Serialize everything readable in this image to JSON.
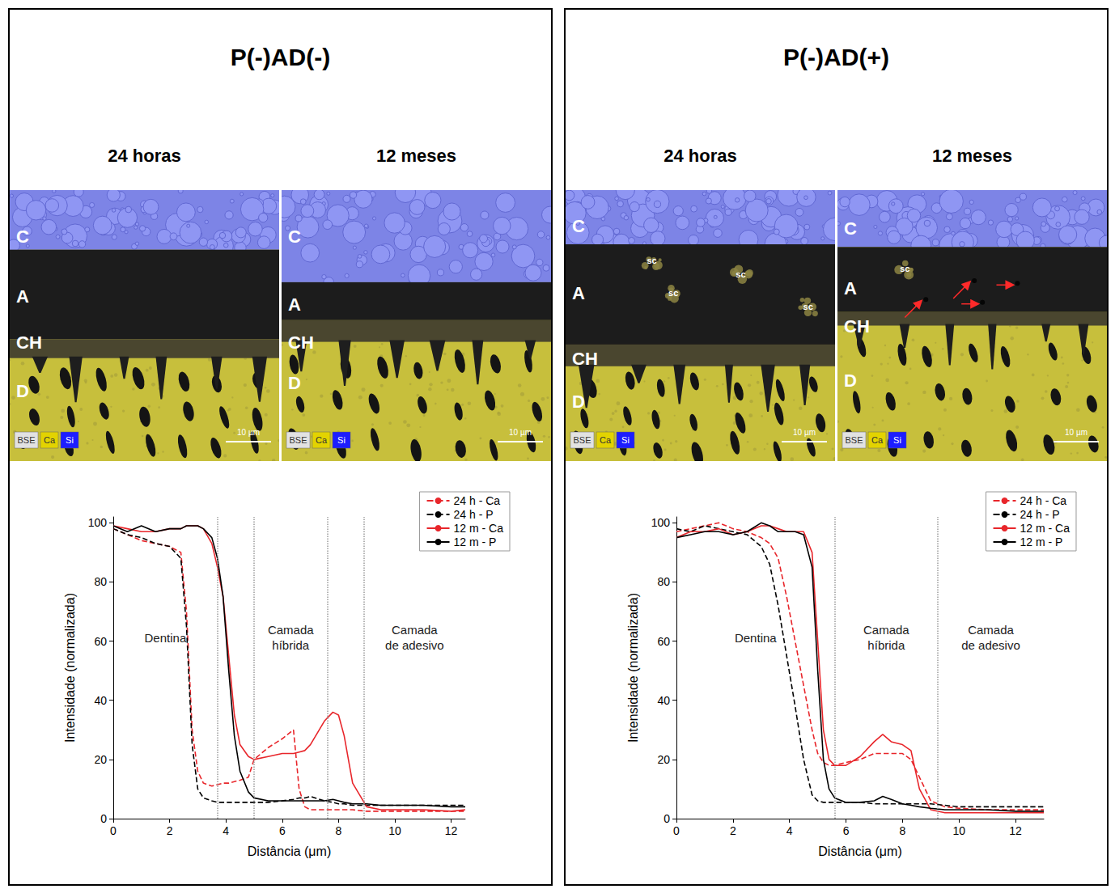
{
  "panels": [
    {
      "title": "P(-)AD(-)",
      "images": [
        {
          "time": "24 horas",
          "labels": [
            "C",
            "A",
            "CH",
            "D"
          ],
          "markers": [],
          "channels": [
            "BSE",
            "Ca",
            "Si"
          ],
          "scale_bar": "10 µm"
        },
        {
          "time": "12 meses",
          "labels": [
            "C",
            "A",
            "CH",
            "D"
          ],
          "markers": [],
          "channels": [
            "BSE",
            "Ca",
            "Si"
          ],
          "scale_bar": "10 µm"
        }
      ]
    },
    {
      "title": "P(-)AD(+)",
      "images": [
        {
          "time": "24 horas",
          "labels": [
            "C",
            "A",
            "CH",
            "D"
          ],
          "markers": [
            "sc",
            "sc",
            "sc",
            "sc"
          ],
          "channels": [
            "BSE",
            "Ca",
            "Si"
          ],
          "scale_bar": "10 µm"
        },
        {
          "time": "12 meses",
          "labels": [
            "C",
            "A",
            "CH",
            "D"
          ],
          "markers": [
            "sc"
          ],
          "channels": [
            "BSE",
            "Ca",
            "Si"
          ],
          "scale_bar": "10 µm"
        }
      ]
    }
  ],
  "chart_data": [
    {
      "type": "line",
      "xlabel": "Distância (μm)",
      "ylabel": "Intensidade (normalizada)",
      "x": [
        0,
        0.5,
        1,
        1.5,
        2,
        2.4,
        2.6,
        2.8,
        3.0,
        3.2,
        3.5,
        3.7,
        3.9,
        4.1,
        4.3,
        4.5,
        4.8,
        5.0,
        5.5,
        6.0,
        6.4,
        6.6,
        6.8,
        7.0,
        7.5,
        7.8,
        8.0,
        8.2,
        8.5,
        9,
        9.5,
        10,
        11,
        12,
        12.5
      ],
      "series": [
        {
          "name": "24 h - Ca",
          "color": "#e8262b",
          "line_style": "dashed",
          "values": [
            98,
            96,
            94,
            93,
            92,
            90,
            70,
            30,
            16,
            12,
            11,
            11.5,
            12,
            12,
            12.5,
            13,
            14,
            20,
            24,
            27,
            30,
            10,
            4,
            3,
            3,
            3,
            3,
            3,
            3,
            2.5,
            2.5,
            2.5,
            2.5,
            2.5,
            2.5
          ]
        },
        {
          "name": "24 h - P",
          "color": "#000000",
          "line_style": "dashed",
          "values": [
            98,
            96,
            95,
            93,
            92,
            88,
            65,
            25,
            10,
            7,
            6,
            5.5,
            5.5,
            5.5,
            5.5,
            5.5,
            5.5,
            5.5,
            5.5,
            6,
            6.5,
            7,
            7,
            7.5,
            6,
            5.5,
            5,
            5,
            4.5,
            4.5,
            4.5,
            4.5,
            4.5,
            4.5,
            4.5
          ]
        },
        {
          "name": "12 m - Ca",
          "color": "#e8262b",
          "line_style": "solid",
          "values": [
            99,
            98,
            97,
            97,
            98,
            98,
            99,
            99,
            99,
            98,
            93,
            85,
            75,
            55,
            35,
            25,
            21,
            20,
            21,
            22,
            22,
            22.5,
            23,
            25,
            33,
            36,
            35,
            28,
            12,
            4,
            3,
            3,
            3,
            2.5,
            3
          ]
        },
        {
          "name": "12 m - P",
          "color": "#000000",
          "line_style": "solid",
          "values": [
            99,
            97,
            99,
            97,
            98,
            98,
            99,
            99,
            99,
            98,
            95,
            88,
            75,
            50,
            28,
            16,
            9,
            7,
            6,
            6,
            6,
            6,
            6,
            6,
            6,
            6.5,
            6,
            5.5,
            5,
            5,
            4.5,
            4.5,
            4.5,
            4,
            4
          ]
        }
      ],
      "dividers": [
        3.7,
        5.0,
        7.6,
        8.9
      ],
      "annotations": [
        {
          "text": "Dentina",
          "from": 0,
          "to": 3.7
        },
        {
          "text": "Camada híbrida",
          "from": 5.0,
          "to": 7.6
        },
        {
          "text": "Camada de adesivo",
          "from": 8.9,
          "to": 12.5
        }
      ],
      "xlim": [
        0,
        12.5
      ],
      "xticks": [
        0,
        2,
        4,
        6,
        8,
        10,
        12
      ],
      "ylim": [
        0,
        102
      ],
      "yticks": [
        0,
        20,
        40,
        60,
        80,
        100
      ],
      "grid": false,
      "legend": "upper right"
    },
    {
      "type": "line",
      "xlabel": "Distância (μm)",
      "ylabel": "Intensidade (normalizada)",
      "x": [
        0,
        0.5,
        1,
        1.5,
        2,
        2.5,
        3,
        3.3,
        3.6,
        3.9,
        4.2,
        4.5,
        4.8,
        5.0,
        5.2,
        5.4,
        5.6,
        6,
        6.5,
        7,
        7.3,
        7.6,
        8,
        8.3,
        8.6,
        9,
        9.5,
        10,
        11,
        12,
        13
      ],
      "series": [
        {
          "name": "24 h - Ca",
          "color": "#e8262b",
          "line_style": "dashed",
          "values": [
            97,
            98,
            99,
            100,
            98,
            97,
            95,
            93,
            88,
            75,
            60,
            45,
            30,
            22,
            19,
            18,
            18,
            19,
            20,
            22,
            22,
            22,
            22,
            20,
            14,
            6,
            4,
            3.5,
            3,
            3,
            3
          ]
        },
        {
          "name": "24 h - P",
          "color": "#000000",
          "line_style": "dashed",
          "values": [
            98,
            97,
            99,
            98,
            97,
            96,
            92,
            86,
            72,
            55,
            38,
            20,
            8,
            6,
            5.5,
            5.5,
            5.5,
            5.5,
            5.5,
            5,
            5,
            5,
            5,
            5,
            5,
            5,
            4.5,
            4,
            4,
            4,
            4
          ]
        },
        {
          "name": "12 m - Ca",
          "color": "#e8262b",
          "line_style": "solid",
          "values": [
            95,
            97,
            97,
            98,
            96,
            97,
            99,
            99,
            98,
            97,
            97,
            97,
            90,
            60,
            30,
            20,
            18,
            18,
            21,
            26,
            28.5,
            26,
            25,
            23,
            10,
            3,
            2,
            2,
            2,
            2,
            2
          ]
        },
        {
          "name": "12 m - P",
          "color": "#000000",
          "line_style": "solid",
          "values": [
            95,
            96,
            97,
            97,
            96,
            97,
            100,
            99,
            97,
            97,
            97,
            96,
            85,
            50,
            20,
            10,
            7,
            5.5,
            5.5,
            6,
            7.5,
            6.5,
            5,
            4.5,
            4,
            3.5,
            3,
            3,
            3,
            2.5,
            2.5
          ]
        }
      ],
      "dividers": [
        5.6,
        9.25
      ],
      "annotations": [
        {
          "text": "Dentina",
          "from": 0,
          "to": 5.6
        },
        {
          "text": "Camada híbrida",
          "from": 5.6,
          "to": 9.25
        },
        {
          "text": "Camada de adesivo",
          "from": 9.25,
          "to": 13
        }
      ],
      "xlim": [
        0,
        13
      ],
      "xticks": [
        0,
        2,
        4,
        6,
        8,
        10,
        12
      ],
      "ylim": [
        0,
        102
      ],
      "yticks": [
        0,
        20,
        40,
        60,
        80,
        100
      ],
      "grid": false,
      "legend": "upper right"
    }
  ]
}
